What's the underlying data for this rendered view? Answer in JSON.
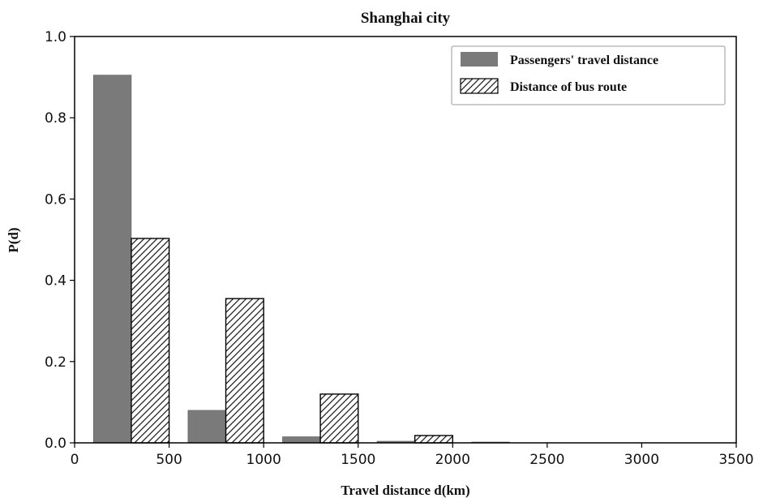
{
  "chart_data": {
    "type": "bar",
    "title": "Shanghai city",
    "xlabel": "Travel distance d(km)",
    "ylabel": "P(d)",
    "xlim": [
      0,
      3500
    ],
    "ylim": [
      0,
      1.0
    ],
    "xticks": [
      0,
      500,
      1000,
      1500,
      2000,
      2500,
      3000,
      3500
    ],
    "yticks": [
      0.0,
      0.2,
      0.4,
      0.6,
      0.8,
      1.0
    ],
    "xtick_labels": [
      "0",
      "500",
      "1000",
      "1500",
      "2000",
      "2500",
      "3000",
      "3500"
    ],
    "ytick_labels": [
      "0.0",
      "0.2",
      "0.4",
      "0.6",
      "0.8",
      "1.0"
    ],
    "bin_centers": [
      300,
      800,
      1300,
      1800,
      2300
    ],
    "series": [
      {
        "name": "Passengers' travel distance",
        "fill": "solid",
        "color": "#7a7a7a",
        "values": [
          0.905,
          0.08,
          0.015,
          0.004,
          0.002
        ]
      },
      {
        "name": "Distance of bus route",
        "fill": "hatched",
        "color": "#ffffff",
        "values": [
          0.503,
          0.355,
          0.12,
          0.018,
          0.0
        ]
      }
    ],
    "legend": {
      "position": "top-right"
    },
    "grid": false
  }
}
